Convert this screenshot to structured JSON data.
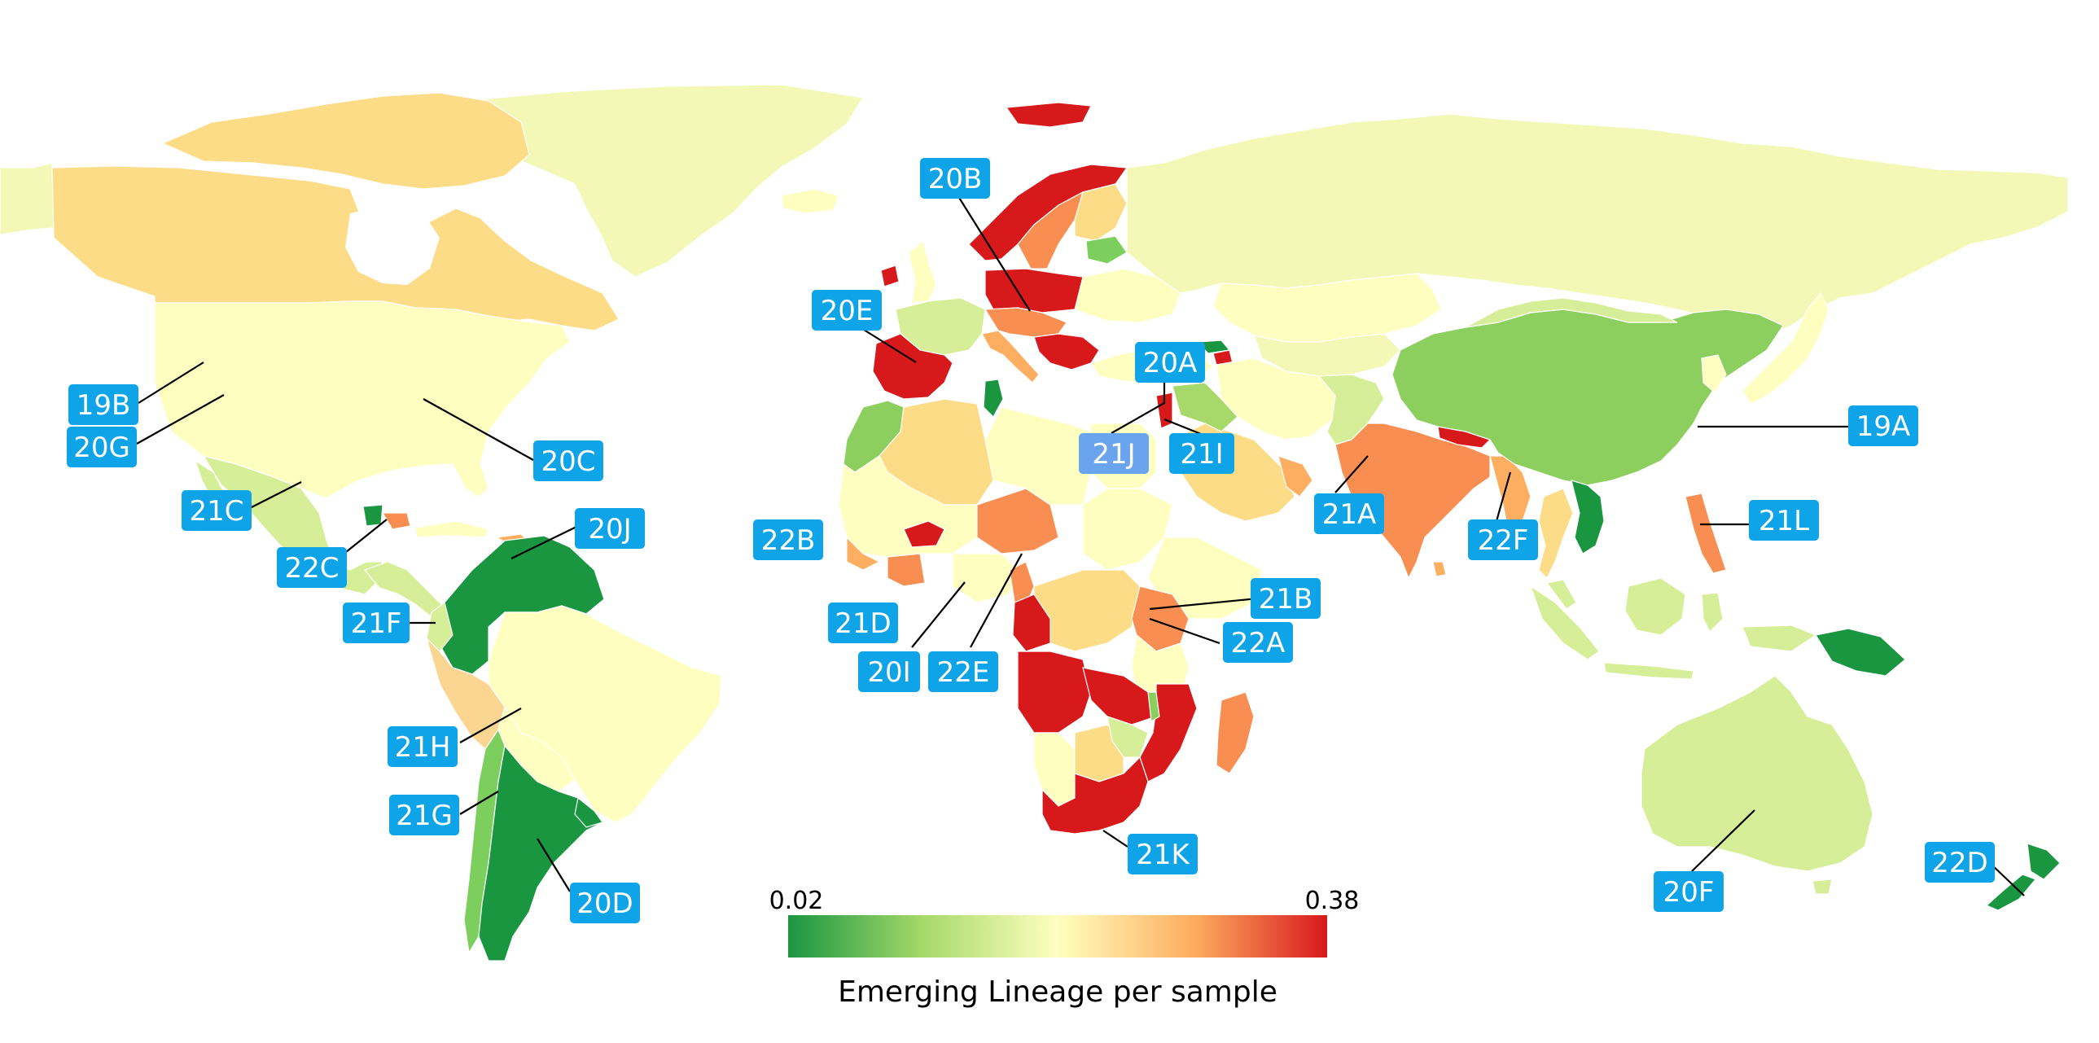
{
  "colors": {
    "label_bg": "#0fa3e8",
    "label_bg_dimmed": "#6aa4ee",
    "label_text": "#ffffff",
    "scale": [
      "#1a9641",
      "#a6d96a",
      "#ffffbf",
      "#fdae61",
      "#d7191c"
    ]
  },
  "colorbar": {
    "min_label": "0.02",
    "max_label": "0.38",
    "title": "Emerging Lineage per sample"
  },
  "labels": [
    {
      "id": "19A",
      "text": "19A"
    },
    {
      "id": "19B",
      "text": "19B"
    },
    {
      "id": "20A",
      "text": "20A"
    },
    {
      "id": "20B",
      "text": "20B"
    },
    {
      "id": "20C",
      "text": "20C"
    },
    {
      "id": "20D",
      "text": "20D"
    },
    {
      "id": "20E",
      "text": "20E"
    },
    {
      "id": "20F",
      "text": "20F"
    },
    {
      "id": "20G",
      "text": "20G"
    },
    {
      "id": "20I",
      "text": "20I"
    },
    {
      "id": "20J",
      "text": "20J"
    },
    {
      "id": "21A",
      "text": "21A"
    },
    {
      "id": "21B",
      "text": "21B"
    },
    {
      "id": "21C",
      "text": "21C"
    },
    {
      "id": "21D",
      "text": "21D"
    },
    {
      "id": "21F",
      "text": "21F"
    },
    {
      "id": "21G",
      "text": "21G"
    },
    {
      "id": "21H",
      "text": "21H"
    },
    {
      "id": "21I",
      "text": "21I"
    },
    {
      "id": "21J",
      "text": "21J"
    },
    {
      "id": "21K",
      "text": "21K"
    },
    {
      "id": "21L",
      "text": "21L"
    },
    {
      "id": "22A",
      "text": "22A"
    },
    {
      "id": "22B",
      "text": "22B"
    },
    {
      "id": "22C",
      "text": "22C"
    },
    {
      "id": "22D",
      "text": "22D"
    },
    {
      "id": "22E",
      "text": "22E"
    },
    {
      "id": "22F",
      "text": "22F"
    }
  ]
}
